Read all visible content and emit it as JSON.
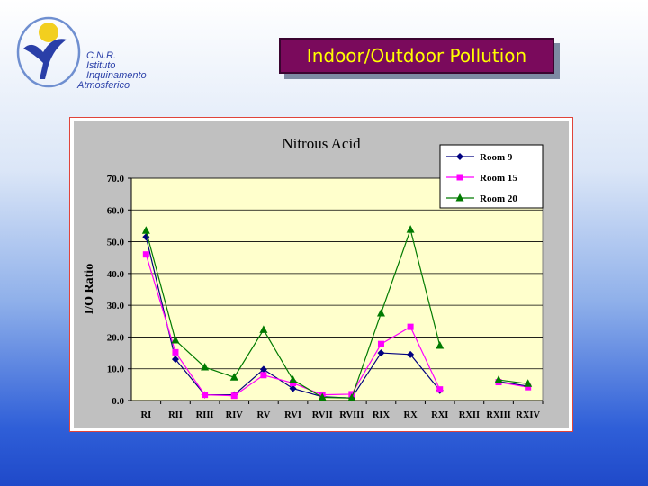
{
  "logo": {
    "line1": "C.N.R.",
    "line2": "Istituto",
    "line3": "Inquinamento",
    "line4": "Atmosferico"
  },
  "header": {
    "title": "Indoor/Outdoor Pollution"
  },
  "colors": {
    "room9": "#000080",
    "room15": "#ff00ff",
    "room20": "#007a00",
    "plot_bg": "#ffffcc",
    "frame_bg": "#c0c0c0",
    "title_bg": "#7a0a5c",
    "title_fg": "#ffff00"
  },
  "chart_data": {
    "type": "line",
    "title": "Nitrous Acid",
    "xlabel": "",
    "ylabel": "I/O Ratio",
    "ylim": [
      0,
      70
    ],
    "yticks": [
      "0.0",
      "10.0",
      "20.0",
      "30.0",
      "40.0",
      "50.0",
      "60.0",
      "70.0"
    ],
    "grid": true,
    "legend_position": "top-right",
    "categories": [
      "RI",
      "RII",
      "RIII",
      "RIV",
      "RV",
      "RVI",
      "RVII",
      "RVIII",
      "RIX",
      "RX",
      "RXI",
      "RXII",
      "RXIII",
      "RXIV"
    ],
    "series": [
      {
        "name": "Room 9",
        "marker": "diamond",
        "values": [
          51.5,
          13.0,
          1.8,
          1.8,
          9.8,
          3.8,
          1.2,
          0.8,
          15.0,
          14.5,
          3.2,
          null,
          6.0,
          4.5
        ]
      },
      {
        "name": "Room 15",
        "marker": "square",
        "values": [
          46.0,
          15.2,
          1.8,
          1.5,
          8.0,
          5.5,
          1.8,
          2.0,
          17.8,
          23.2,
          3.5,
          null,
          5.8,
          4.2
        ]
      },
      {
        "name": "Room 20",
        "marker": "triangle",
        "values": [
          53.5,
          19.0,
          10.5,
          7.3,
          22.3,
          6.5,
          1.0,
          0.8,
          27.5,
          53.8,
          17.3,
          null,
          6.5,
          5.3
        ]
      }
    ]
  }
}
